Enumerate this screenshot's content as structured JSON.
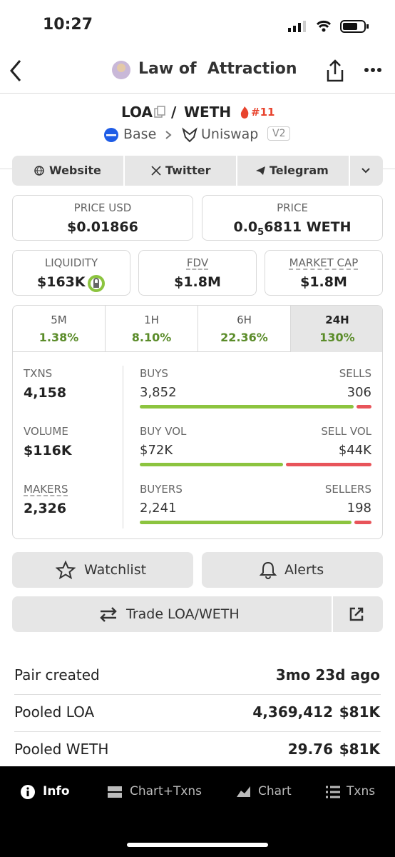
{
  "status_bar": {
    "time": "10:27"
  },
  "header": {
    "title": "Law of  Attraction"
  },
  "pair": {
    "base": "LOA",
    "separator": "/",
    "quote": "WETH",
    "rank": "#11",
    "chain": "Base",
    "dex": "Uniswap",
    "version": "V2"
  },
  "links": [
    "Website",
    "Twitter",
    "Telegram"
  ],
  "price_usd": {
    "label": "PRICE USD",
    "value": "$0.01866"
  },
  "price": {
    "label": "PRICE",
    "value_prefix": "0.0",
    "zeros": "5",
    "value_suffix": "6811 WETH"
  },
  "metrics": [
    {
      "label": "LIQUIDITY",
      "value": "$163K"
    },
    {
      "label": "FDV",
      "value": "$1.8M"
    },
    {
      "label": "MARKET CAP",
      "value": "$1.8M"
    }
  ],
  "timeframes": [
    {
      "label": "5M",
      "change": "1.38%"
    },
    {
      "label": "1H",
      "change": "8.10%"
    },
    {
      "label": "6H",
      "change": "22.36%"
    },
    {
      "label": "24H",
      "change": "130%"
    }
  ],
  "stats": [
    {
      "label": "TXNS",
      "value": "4,158",
      "left_label": "BUYS",
      "left_value": "3,852",
      "right_label": "SELLS",
      "right_value": "306"
    },
    {
      "label": "VOLUME",
      "value": "$116K",
      "left_label": "BUY VOL",
      "left_value": "$72K",
      "right_label": "SELL VOL",
      "right_value": "$44K"
    },
    {
      "label": "MAKERS",
      "value": "2,326",
      "left_label": "BUYERS",
      "left_value": "2,241",
      "right_label": "SELLERS",
      "right_value": "198"
    }
  ],
  "actions": {
    "watchlist": "Watchlist",
    "alerts": "Alerts",
    "trade": "Trade LOA/WETH"
  },
  "info": [
    {
      "label": "Pair created",
      "value": "3mo 23d ago"
    },
    {
      "label": "Pooled LOA",
      "amount": "4,369,412",
      "value": "$81K"
    },
    {
      "label": "Pooled WETH",
      "amount": "29.76",
      "value": "$81K"
    }
  ],
  "nav": [
    "Info",
    "Chart+Txns",
    "Chart",
    "Txns"
  ]
}
